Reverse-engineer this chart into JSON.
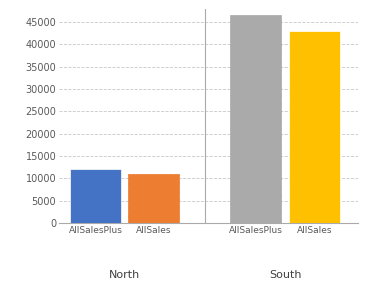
{
  "groups": [
    "North",
    "South"
  ],
  "bar_labels": [
    "AllSalesPlus",
    "AllSales"
  ],
  "values_north": [
    12000,
    11000
  ],
  "values_south": [
    46500,
    43000
  ],
  "colors": [
    "#4472C4",
    "#ED7D31",
    "#AAAAAA",
    "#FFC000"
  ],
  "hatches": [
    "",
    "dotted",
    "dotted",
    ""
  ],
  "ylim": [
    0,
    48000
  ],
  "yticks": [
    0,
    5000,
    10000,
    15000,
    20000,
    25000,
    30000,
    35000,
    40000,
    45000
  ],
  "background_color": "#FFFFFF",
  "plot_bg_color": "#FFFFFF",
  "grid_color": "#C8C8C8",
  "bar_width": 0.7,
  "figure_border_color": "#AAAAAA"
}
